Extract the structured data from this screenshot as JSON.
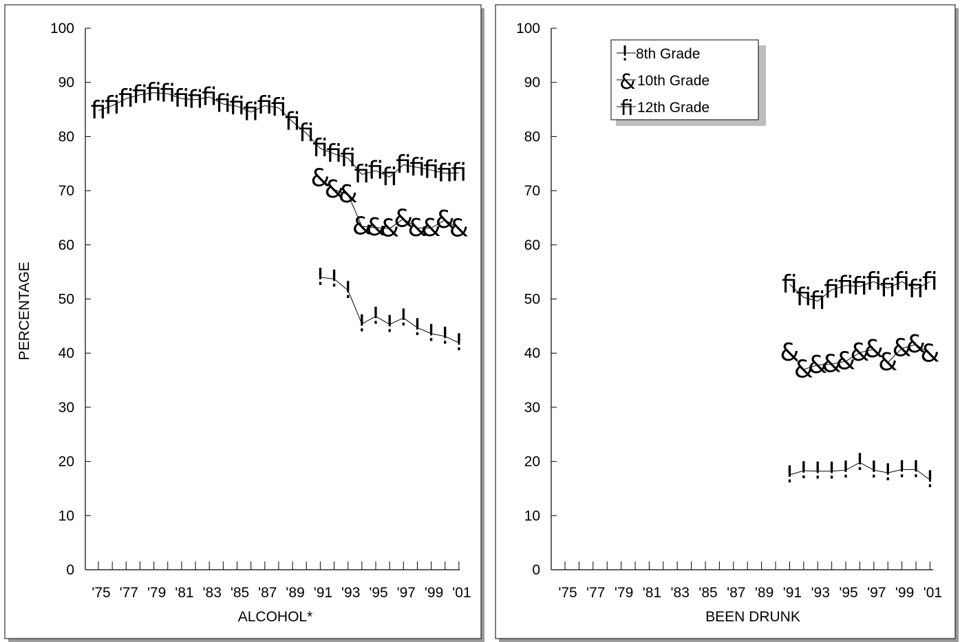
{
  "chart_data": [
    {
      "type": "line",
      "xlabel": "ALCOHOL*",
      "ylabel": "PERCENTAGE",
      "ylim": [
        0,
        100
      ],
      "yticks": [
        0,
        10,
        20,
        30,
        40,
        50,
        60,
        70,
        80,
        90,
        100
      ],
      "x": [
        1975,
        1976,
        1977,
        1978,
        1979,
        1980,
        1981,
        1982,
        1983,
        1984,
        1985,
        1986,
        1987,
        1988,
        1989,
        1990,
        1991,
        1992,
        1993,
        1994,
        1995,
        1996,
        1997,
        1998,
        1999,
        2000,
        2001
      ],
      "xtick_labels": [
        "'75",
        "'77",
        "'79",
        "'81",
        "'83",
        "'85",
        "'87",
        "'89",
        "'91",
        "'93",
        "'95",
        "'97",
        "'99",
        "'01"
      ],
      "series": [
        {
          "name": "8th Grade",
          "marker": "!",
          "x": [
            1991,
            1992,
            1993,
            1994,
            1995,
            1996,
            1997,
            1998,
            1999,
            2000,
            2001
          ],
          "values": [
            54.0,
            53.7,
            51.6,
            45.4,
            46.8,
            45.3,
            46.5,
            44.7,
            43.6,
            43.1,
            41.9
          ]
        },
        {
          "name": "10th Grade",
          "marker": "&",
          "x": [
            1991,
            1992,
            1993,
            1994,
            1995,
            1996,
            1997,
            1998,
            1999,
            2000,
            2001
          ],
          "values": [
            72.3,
            70.2,
            69.3,
            63.4,
            63.2,
            63.0,
            64.8,
            63.1,
            63.1,
            64.6,
            63.0
          ]
        },
        {
          "name": "12th Grade",
          "marker": "fi",
          "x": [
            1975,
            1976,
            1977,
            1978,
            1979,
            1980,
            1981,
            1982,
            1983,
            1984,
            1985,
            1986,
            1987,
            1988,
            1989,
            1990,
            1991,
            1992,
            1993,
            1994,
            1995,
            1996,
            1997,
            1998,
            1999,
            2000,
            2001
          ],
          "values": [
            84.8,
            85.7,
            87.0,
            87.7,
            88.1,
            87.9,
            87.0,
            86.8,
            87.3,
            86.0,
            85.6,
            84.5,
            85.7,
            85.3,
            82.7,
            80.6,
            77.8,
            76.8,
            76.0,
            73.0,
            73.7,
            72.5,
            74.8,
            74.3,
            73.8,
            73.2,
            73.3
          ]
        }
      ]
    },
    {
      "type": "line",
      "xlabel": "BEEN DRUNK",
      "ylabel": "",
      "ylim": [
        0,
        100
      ],
      "yticks": [
        0,
        10,
        20,
        30,
        40,
        50,
        60,
        70,
        80,
        90,
        100
      ],
      "x": [
        1975,
        1976,
        1977,
        1978,
        1979,
        1980,
        1981,
        1982,
        1983,
        1984,
        1985,
        1986,
        1987,
        1988,
        1989,
        1990,
        1991,
        1992,
        1993,
        1994,
        1995,
        1996,
        1997,
        1998,
        1999,
        2000,
        2001
      ],
      "xtick_labels": [
        "'75",
        "'77",
        "'79",
        "'81",
        "'83",
        "'85",
        "'87",
        "'89",
        "'91",
        "'93",
        "'95",
        "'97",
        "'99",
        "'01"
      ],
      "legend": {
        "placement": "top-left",
        "entries": [
          {
            "marker": "!",
            "label": "8th Grade"
          },
          {
            "marker": "&",
            "label": "10th Grade"
          },
          {
            "marker": "fi",
            "label": "12th Grade"
          }
        ]
      },
      "series": [
        {
          "name": "8th Grade",
          "marker": "!",
          "x": [
            1991,
            1992,
            1993,
            1994,
            1995,
            1996,
            1997,
            1998,
            1999,
            2000,
            2001
          ],
          "values": [
            17.5,
            18.3,
            18.2,
            18.2,
            18.4,
            19.8,
            18.4,
            17.9,
            18.5,
            18.5,
            16.6
          ]
        },
        {
          "name": "10th Grade",
          "marker": "&",
          "x": [
            1991,
            1992,
            1993,
            1994,
            1995,
            1996,
            1997,
            1998,
            1999,
            2000,
            2001
          ],
          "values": [
            40.1,
            37.0,
            37.8,
            38.0,
            38.5,
            40.1,
            40.7,
            38.3,
            40.9,
            41.6,
            39.9
          ]
        },
        {
          "name": "12th Grade",
          "marker": "fi",
          "x": [
            1991,
            1992,
            1993,
            1994,
            1995,
            1996,
            1997,
            1998,
            1999,
            2000,
            2001
          ],
          "values": [
            52.7,
            50.3,
            49.6,
            51.7,
            52.5,
            52.3,
            53.2,
            52.0,
            53.2,
            51.8,
            53.2
          ]
        }
      ]
    }
  ]
}
